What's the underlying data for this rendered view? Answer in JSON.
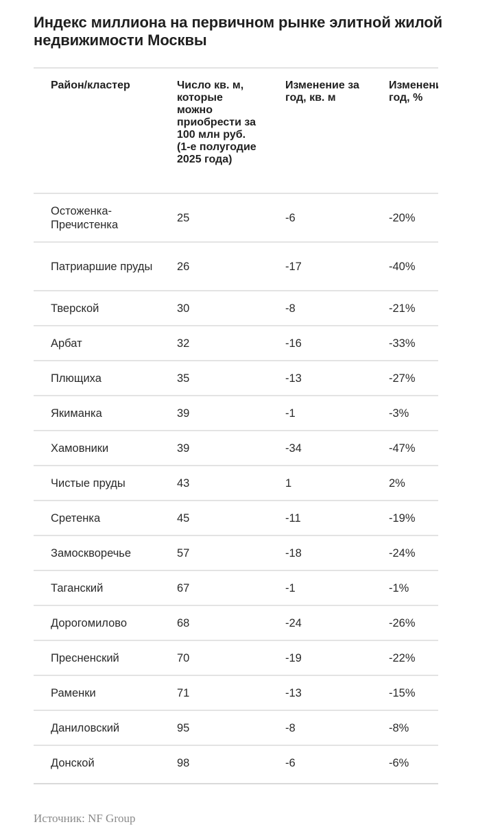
{
  "title": "Индекс миллиона на первичном рынке элитной жилой недвижимости Москвы",
  "table": {
    "headers": [
      "Район/кластер",
      "Число кв. м, которые можно приобрести за 100 млн руб. (1-е полугодие 2025 года)",
      "Изменение за год, кв. м",
      "Изменение за год, %"
    ],
    "rows": [
      {
        "district": "Остоженка-Пречистенка",
        "sqm": "25",
        "change_sqm": "-6",
        "change_pct": "-20%"
      },
      {
        "district": "Патриаршие пруды",
        "sqm": "26",
        "change_sqm": "-17",
        "change_pct": "-40%"
      },
      {
        "district": "Тверской",
        "sqm": "30",
        "change_sqm": "-8",
        "change_pct": "-21%"
      },
      {
        "district": "Арбат",
        "sqm": "32",
        "change_sqm": "-16",
        "change_pct": "-33%"
      },
      {
        "district": "Плющиха",
        "sqm": "35",
        "change_sqm": "-13",
        "change_pct": "-27%"
      },
      {
        "district": "Якиманка",
        "sqm": "39",
        "change_sqm": "-1",
        "change_pct": "-3%"
      },
      {
        "district": "Хамовники",
        "sqm": "39",
        "change_sqm": "-34",
        "change_pct": "-47%"
      },
      {
        "district": "Чистые пруды",
        "sqm": "43",
        "change_sqm": "1",
        "change_pct": "2%"
      },
      {
        "district": "Сретенка",
        "sqm": "45",
        "change_sqm": "-11",
        "change_pct": "-19%"
      },
      {
        "district": "Замоскворечье",
        "sqm": "57",
        "change_sqm": "-18",
        "change_pct": "-24%"
      },
      {
        "district": "Таганский",
        "sqm": "67",
        "change_sqm": "-1",
        "change_pct": "-1%"
      },
      {
        "district": "Дорогомилово",
        "sqm": "68",
        "change_sqm": "-24",
        "change_pct": "-26%"
      },
      {
        "district": "Пресненский",
        "sqm": "70",
        "change_sqm": "-19",
        "change_pct": "-22%"
      },
      {
        "district": "Раменки",
        "sqm": "71",
        "change_sqm": "-13",
        "change_pct": "-15%"
      },
      {
        "district": "Даниловский",
        "sqm": "95",
        "change_sqm": "-8",
        "change_pct": "-8%"
      },
      {
        "district": "Донской",
        "sqm": "98",
        "change_sqm": "-6",
        "change_pct": "-6%"
      }
    ]
  },
  "source": "Источник: NF Group"
}
